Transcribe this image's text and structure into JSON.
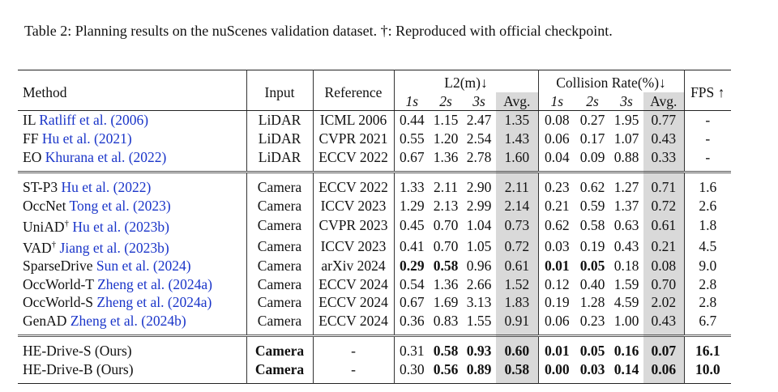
{
  "caption": "Table 2: Planning results on the nuScenes validation dataset. †: Reproduced with official checkpoint.",
  "header": {
    "method": "Method",
    "input": "Input",
    "reference": "Reference",
    "l2": "L2(m)↓",
    "collision": "Collision Rate(%)↓",
    "fps": "FPS ↑",
    "sub": [
      "1s",
      "2s",
      "3s",
      "Avg.",
      "1s",
      "2s",
      "3s",
      "Avg."
    ]
  },
  "groups": [
    [
      {
        "name": "IL",
        "dagger": "",
        "cite": "Ratliff et al. (2006)",
        "input": "LiDAR",
        "ref": "ICML 2006",
        "vals": [
          "0.44",
          "1.15",
          "2.47",
          "1.35",
          "0.08",
          "0.27",
          "1.95",
          "0.77"
        ],
        "fps": "-",
        "bold": []
      },
      {
        "name": "FF",
        "dagger": "",
        "cite": "Hu et al. (2021)",
        "input": "LiDAR",
        "ref": "CVPR 2021",
        "vals": [
          "0.55",
          "1.20",
          "2.54",
          "1.43",
          "0.06",
          "0.17",
          "1.07",
          "0.43"
        ],
        "fps": "-",
        "bold": []
      },
      {
        "name": "EO",
        "dagger": "",
        "cite": "Khurana et al. (2022)",
        "input": "LiDAR",
        "ref": "ECCV 2022",
        "vals": [
          "0.67",
          "1.36",
          "2.78",
          "1.60",
          "0.04",
          "0.09",
          "0.88",
          "0.33"
        ],
        "fps": "-",
        "bold": []
      }
    ],
    [
      {
        "name": "ST-P3",
        "dagger": "",
        "cite": "Hu et al. (2022)",
        "input": "Camera",
        "ref": "ECCV 2022",
        "vals": [
          "1.33",
          "2.11",
          "2.90",
          "2.11",
          "0.23",
          "0.62",
          "1.27",
          "0.71"
        ],
        "fps": "1.6",
        "bold": []
      },
      {
        "name": "OccNet",
        "dagger": "",
        "cite": "Tong et al. (2023)",
        "input": "Camera",
        "ref": "ICCV 2023",
        "vals": [
          "1.29",
          "2.13",
          "2.99",
          "2.14",
          "0.21",
          "0.59",
          "1.37",
          "0.72"
        ],
        "fps": "2.6",
        "bold": []
      },
      {
        "name": "UniAD",
        "dagger": "†",
        "cite": "Hu et al. (2023b)",
        "input": "Camera",
        "ref": "CVPR 2023",
        "vals": [
          "0.45",
          "0.70",
          "1.04",
          "0.73",
          "0.62",
          "0.58",
          "0.63",
          "0.61"
        ],
        "fps": "1.8",
        "bold": []
      },
      {
        "name": "VAD",
        "dagger": "†",
        "cite": "Jiang et al. (2023b)",
        "input": "Camera",
        "ref": "ICCV 2023",
        "vals": [
          "0.41",
          "0.70",
          "1.05",
          "0.72",
          "0.03",
          "0.19",
          "0.43",
          "0.21"
        ],
        "fps": "4.5",
        "bold": []
      },
      {
        "name": "SparseDrive",
        "dagger": "",
        "cite": "Sun et al. (2024)",
        "input": "Camera",
        "ref": "arXiv 2024",
        "vals": [
          "0.29",
          "0.58",
          "0.96",
          "0.61",
          "0.01",
          "0.05",
          "0.18",
          "0.08"
        ],
        "fps": "9.0",
        "bold": [
          0,
          1,
          4,
          5
        ]
      },
      {
        "name": "OccWorld-T",
        "dagger": "",
        "cite": "Zheng et al. (2024a)",
        "input": "Camera",
        "ref": "ECCV 2024",
        "vals": [
          "0.54",
          "1.36",
          "2.66",
          "1.52",
          "0.12",
          "0.40",
          "1.59",
          "0.70"
        ],
        "fps": "2.8",
        "bold": []
      },
      {
        "name": "OccWorld-S",
        "dagger": "",
        "cite": "Zheng et al. (2024a)",
        "input": "Camera",
        "ref": "ECCV 2024",
        "vals": [
          "0.67",
          "1.69",
          "3.13",
          "1.83",
          "0.19",
          "1.28",
          "4.59",
          "2.02"
        ],
        "fps": "2.8",
        "bold": []
      },
      {
        "name": "GenAD",
        "dagger": "",
        "cite": "Zheng et al. (2024b)",
        "input": "Camera",
        "ref": "ECCV 2024",
        "vals": [
          "0.36",
          "0.83",
          "1.55",
          "0.91",
          "0.06",
          "0.23",
          "1.00",
          "0.43"
        ],
        "fps": "6.7",
        "bold": []
      }
    ],
    [
      {
        "name": "HE-Drive-S (Ours)",
        "dagger": "",
        "cite": "",
        "input": "Camera",
        "ref": "-",
        "vals": [
          "0.31",
          "0.58",
          "0.93",
          "0.60",
          "0.01",
          "0.05",
          "0.16",
          "0.07"
        ],
        "fps": "16.1",
        "bold": [
          1,
          2,
          3,
          4,
          5,
          6,
          7,
          8
        ]
      },
      {
        "name": "HE-Drive-B (Ours)",
        "dagger": "",
        "cite": "",
        "input": "Camera",
        "ref": "-",
        "vals": [
          "0.30",
          "0.56",
          "0.89",
          "0.58",
          "0.00",
          "0.03",
          "0.14",
          "0.06"
        ],
        "fps": "10.0",
        "bold": [
          1,
          2,
          3,
          4,
          5,
          6,
          7,
          8
        ]
      }
    ]
  ]
}
